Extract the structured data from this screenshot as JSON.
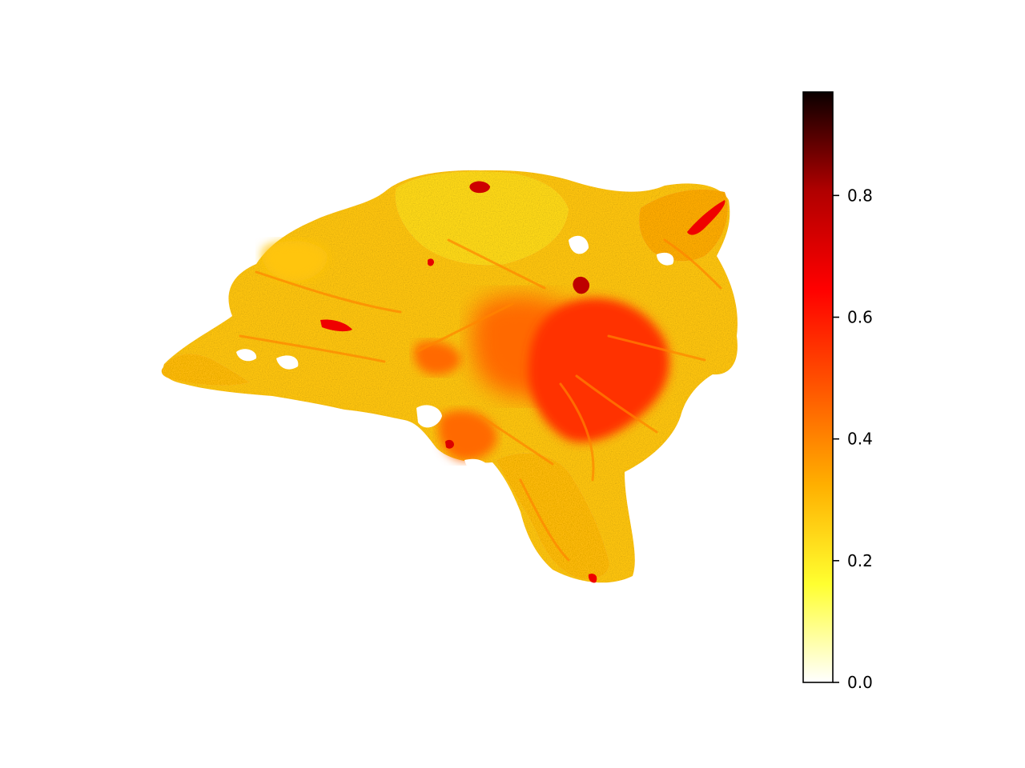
{
  "chart_data": {
    "type": "heatmap",
    "title": "",
    "xlabel": "",
    "ylabel": "",
    "axes_visible": false,
    "colormap": "hot_r",
    "colorbar": {
      "vmin": 0.0,
      "vmax": 0.97,
      "ticks": [
        0.0,
        0.2,
        0.4,
        0.6,
        0.8
      ],
      "tick_labels": [
        "0.0",
        "0.2",
        "0.4",
        "0.6",
        "0.8"
      ],
      "placement": "right",
      "colors": [
        "#ffffff",
        "#ffff30",
        "#ffb000",
        "#ff5500",
        "#ff0000",
        "#b00000",
        "#0b0000"
      ]
    },
    "regions": [
      {
        "name": "tissue-body",
        "value": 0.28
      },
      {
        "name": "left-lobe",
        "value": 0.3
      },
      {
        "name": "upper-lobe",
        "value": 0.24
      },
      {
        "name": "central-core",
        "value": 0.45
      },
      {
        "name": "lower-right-core",
        "value": 0.55
      },
      {
        "name": "lower-tail",
        "value": 0.3
      },
      {
        "name": "right-strands",
        "value": 0.33
      },
      {
        "name": "dark-spot-upper",
        "value": 0.75
      },
      {
        "name": "dark-spot-right",
        "value": 0.78
      },
      {
        "name": "dark-spot-center",
        "value": 0.7
      },
      {
        "name": "dark-spot-lower",
        "value": 0.72
      },
      {
        "name": "dark-streak-right",
        "value": 0.68
      }
    ]
  }
}
